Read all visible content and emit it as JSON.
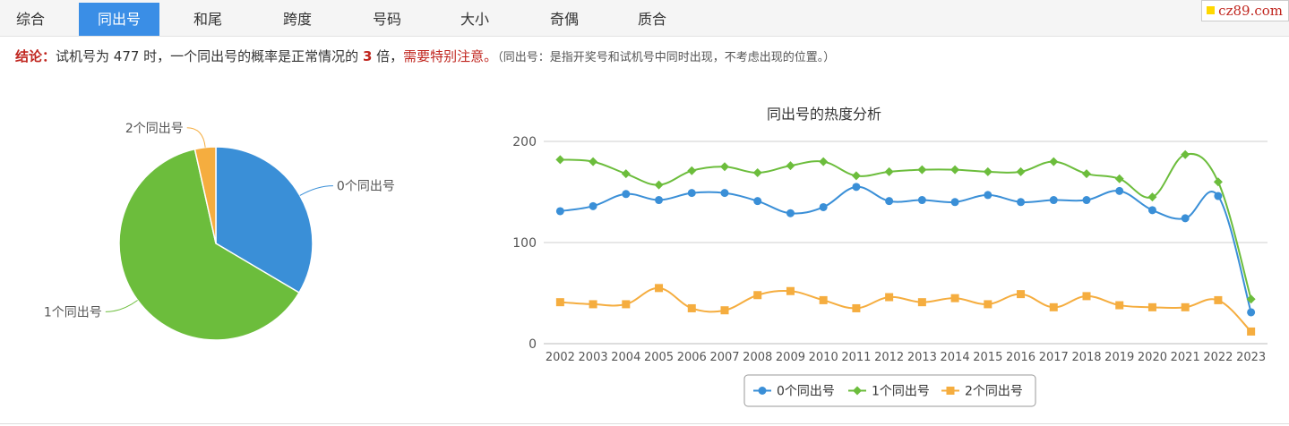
{
  "tabs": [
    {
      "label": "综合",
      "active": false
    },
    {
      "label": "同出号",
      "active": true
    },
    {
      "label": "和尾",
      "active": false
    },
    {
      "label": "跨度",
      "active": false
    },
    {
      "label": "号码",
      "active": false
    },
    {
      "label": "大小",
      "active": false
    },
    {
      "label": "奇偶",
      "active": false
    },
    {
      "label": "质合",
      "active": false
    }
  ],
  "logo": {
    "text": "cz89.com"
  },
  "summary": {
    "label": "结论：",
    "text1": "试机号为 477 时，一个同出号的概率是正常情况的 ",
    "multiple": "3",
    "text2": " 倍，",
    "warning": "需要特别注意。",
    "note": "（同出号：是指开奖号和试机号中同时出现，不考虑出现的位置。）"
  },
  "colors": {
    "s0": "#3a8fd7",
    "s1": "#6cbd3c",
    "s2": "#f5ad3f"
  },
  "chart_data": [
    {
      "type": "pie",
      "labels": [
        "0个同出号",
        "1个同出号",
        "2个同出号"
      ],
      "values": [
        33.5,
        63,
        3.5
      ]
    },
    {
      "type": "line",
      "title": "同出号的热度分析",
      "categories": [
        "2002",
        "2003",
        "2004",
        "2005",
        "2006",
        "2007",
        "2008",
        "2009",
        "2010",
        "2011",
        "2012",
        "2013",
        "2014",
        "2015",
        "2016",
        "2017",
        "2018",
        "2019",
        "2020",
        "2021",
        "2022",
        "2023"
      ],
      "yticks": [
        0,
        100,
        200
      ],
      "ylim": [
        0,
        200
      ],
      "legend_position": "bottom-center",
      "series": [
        {
          "name": "0个同出号",
          "marker": "circle",
          "values": [
            131,
            136,
            148,
            142,
            149,
            149,
            141,
            129,
            135,
            155,
            141,
            142,
            140,
            147,
            140,
            142,
            142,
            151,
            132,
            124,
            146,
            31
          ]
        },
        {
          "name": "1个同出号",
          "marker": "diamond",
          "values": [
            182,
            180,
            168,
            157,
            171,
            175,
            169,
            176,
            180,
            166,
            170,
            172,
            172,
            170,
            170,
            180,
            168,
            163,
            145,
            187,
            160,
            44
          ]
        },
        {
          "name": "2个同出号",
          "marker": "square",
          "values": [
            41,
            39,
            39,
            55,
            35,
            33,
            48,
            52,
            43,
            35,
            46,
            41,
            45,
            39,
            49,
            36,
            47,
            38,
            36,
            36,
            43,
            12
          ]
        }
      ]
    }
  ]
}
